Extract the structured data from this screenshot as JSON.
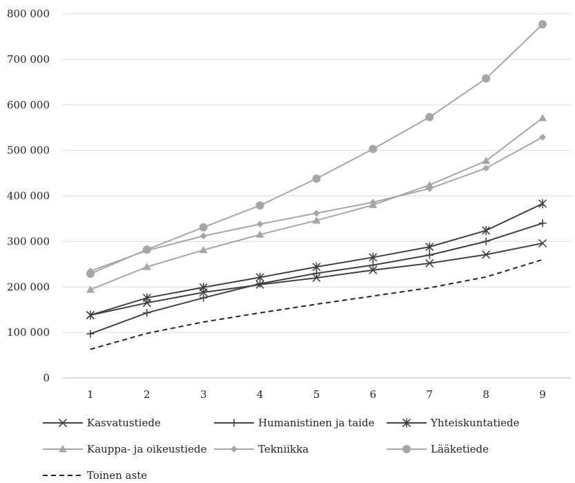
{
  "chart_data": {
    "type": "line",
    "title": "",
    "xlabel": "",
    "ylabel": "",
    "x": [
      "1",
      "2",
      "3",
      "4",
      "5",
      "6",
      "7",
      "8",
      "9"
    ],
    "ylim": [
      0,
      800000
    ],
    "y_ticks": [
      0,
      100000,
      200000,
      300000,
      400000,
      500000,
      600000,
      700000,
      800000
    ],
    "y_tick_labels": [
      "0",
      "100 000",
      "200 000",
      "300 000",
      "400 000",
      "500 000",
      "600 000",
      "700 000",
      "800 000"
    ],
    "grid": true,
    "legend_position": "bottom",
    "series": [
      {
        "name": "Kasvatustiede",
        "marker": "x",
        "color": "#404040",
        "dash": "solid",
        "values": [
          138000,
          165000,
          188000,
          205000,
          220000,
          237000,
          252000,
          271000,
          296000
        ]
      },
      {
        "name": "Humanistinen ja taide",
        "marker": "plus",
        "color": "#404040",
        "dash": "solid",
        "values": [
          97000,
          143000,
          176000,
          207000,
          230000,
          248000,
          270000,
          300000,
          340000
        ]
      },
      {
        "name": "Yhteiskuntatiede",
        "marker": "asterisk",
        "color": "#404040",
        "dash": "solid",
        "values": [
          138000,
          176000,
          199000,
          221000,
          244000,
          265000,
          288000,
          324000,
          383000
        ]
      },
      {
        "name": "Kauppa- ja oikeustiede",
        "marker": "triangle",
        "color": "#a6a6a6",
        "dash": "solid",
        "values": [
          194000,
          244000,
          281000,
          315000,
          346000,
          380000,
          424000,
          477000,
          571000
        ]
      },
      {
        "name": "Tekniikka",
        "marker": "diamond",
        "color": "#a6a6a6",
        "dash": "solid",
        "values": [
          235000,
          280000,
          312000,
          338000,
          362000,
          386000,
          416000,
          461000,
          529000
        ]
      },
      {
        "name": "Lääketiede",
        "marker": "circle",
        "color": "#a6a6a6",
        "dash": "solid",
        "values": [
          229000,
          282000,
          331000,
          379000,
          438000,
          503000,
          573000,
          658000,
          777000
        ]
      },
      {
        "name": "Toinen aste",
        "marker": "none",
        "color": "#222222",
        "dash": "dashed",
        "values": [
          63000,
          98000,
          123000,
          143000,
          162000,
          180000,
          198000,
          222000,
          260000
        ]
      }
    ]
  }
}
